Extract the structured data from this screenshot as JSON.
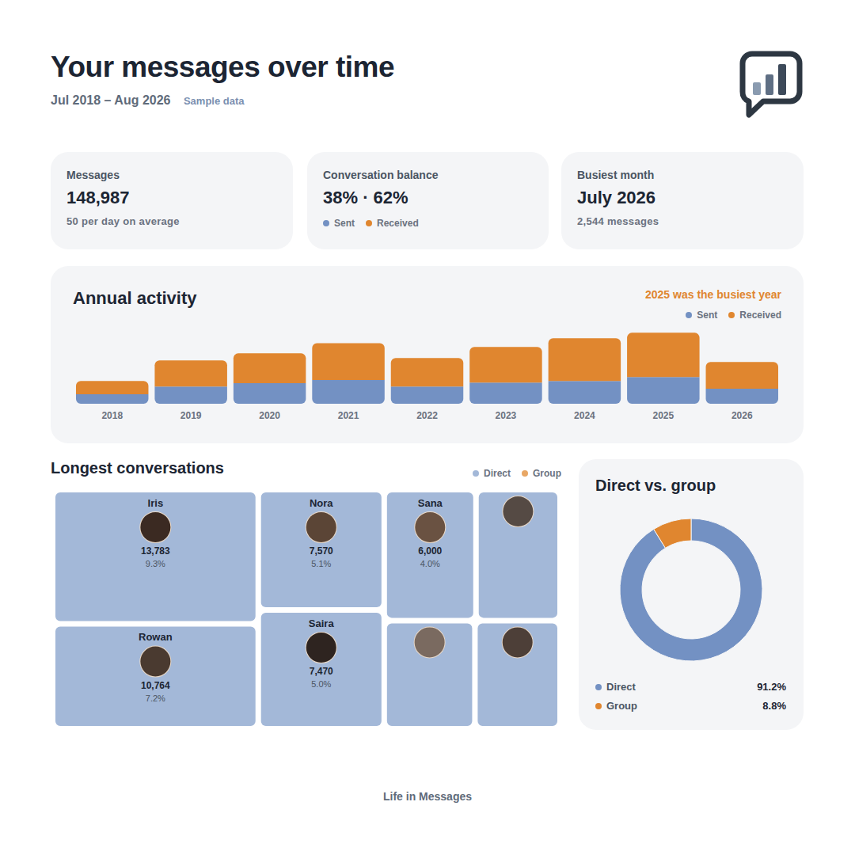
{
  "header": {
    "title": "Your messages over time",
    "subtitle": "Jul 2018 – Aug 2026",
    "note": "Sample data"
  },
  "cards": [
    {
      "label": "Messages",
      "value": "148,987",
      "detail": "50 per day on average"
    },
    {
      "label": "Conversation balance",
      "value": "38% · 62%",
      "legend": [
        {
          "name": "Sent",
          "color": "#7391c3"
        },
        {
          "name": "Received",
          "color": "#e0862f"
        }
      ]
    },
    {
      "label": "Busiest month",
      "value": "July 2026",
      "detail": "2,544 messages"
    }
  ],
  "chart_data": [
    {
      "type": "bar",
      "title": "Annual activity",
      "annotation": "2025 was the busiest year",
      "categories": [
        "2018",
        "2019",
        "2020",
        "2021",
        "2022",
        "2023",
        "2024",
        "2025",
        "2026"
      ],
      "series": [
        {
          "name": "Sent",
          "color": "#7391c3",
          "values": [
            3100,
            5600,
            6700,
            7700,
            5600,
            6900,
            7400,
            8700,
            4900
          ]
        },
        {
          "name": "Received",
          "color": "#e0862f",
          "values": [
            4300,
            8500,
            9700,
            12000,
            9300,
            11600,
            13900,
            14400,
            8700
          ]
        }
      ],
      "stacked": true,
      "ylim": [
        0,
        25000
      ],
      "tick_labels": "x",
      "grid": false,
      "legend": "top right"
    },
    {
      "type": "treemap",
      "title": "Longest conversations",
      "categories": [
        "Iris",
        "Rowan",
        "Nora",
        "Saira",
        "Sana",
        null,
        null,
        null
      ],
      "series": [
        {
          "name": "Direct",
          "color": "#a3b8d8",
          "values": [
            13783,
            10764,
            7570,
            7470,
            6000,
            5500,
            4900,
            4600
          ],
          "value_labels": [
            "13,783",
            "10,764",
            "7,570",
            "7,470",
            "6,000",
            null,
            null,
            null
          ],
          "shares": [
            9.3,
            7.2,
            5.1,
            5.0,
            4.0,
            null,
            null,
            null
          ],
          "share_labels": [
            "9.3%",
            "7.2%",
            "5.1%",
            "5.0%",
            "4.0%",
            null,
            null,
            null
          ]
        },
        {
          "name": "Group",
          "color": "#e8a765",
          "values": [
            null,
            null,
            null,
            null,
            null,
            null,
            null,
            null
          ]
        }
      ],
      "data_labels": true,
      "legend": "top right"
    },
    {
      "type": "pie",
      "title": "Direct vs. group",
      "categories": [
        "Direct",
        "Group"
      ],
      "values": [
        91.2,
        8.8
      ],
      "value_labels": [
        "91.2%",
        "8.8%"
      ],
      "colors": [
        "#7391c3",
        "#e0862f"
      ],
      "data_labels": false,
      "legend": "bottom"
    }
  ],
  "footer": "Life in Messages"
}
